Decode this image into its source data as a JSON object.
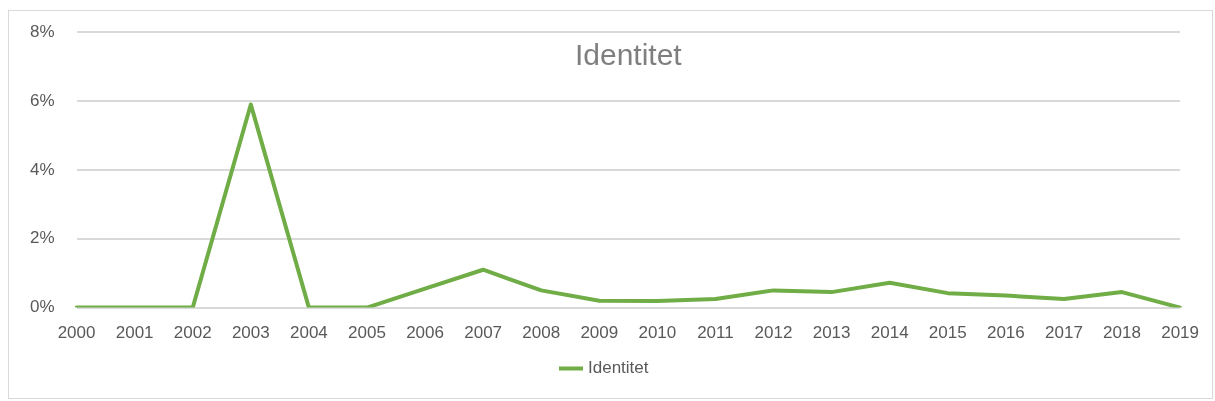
{
  "chart_data": {
    "type": "line",
    "title": "Identitet",
    "categories": [
      "2000",
      "2001",
      "2002",
      "2003",
      "2004",
      "2005",
      "2006",
      "2007",
      "2008",
      "2009",
      "2010",
      "2011",
      "2012",
      "2013",
      "2014",
      "2015",
      "2016",
      "2017",
      "2018",
      "2019"
    ],
    "series": [
      {
        "name": "Identitet",
        "color": "#70ad47",
        "values": [
          0,
          0,
          0,
          5.9,
          0,
          0,
          0.55,
          1.1,
          0.5,
          0.2,
          0.19,
          0.25,
          0.5,
          0.45,
          0.72,
          0.42,
          0.35,
          0.25,
          0.45,
          0
        ]
      }
    ],
    "ylim": [
      0,
      8
    ],
    "yticks": [
      {
        "value": 0,
        "label": "0%"
      },
      {
        "value": 2,
        "label": "2%"
      },
      {
        "value": 4,
        "label": "4%"
      },
      {
        "value": 6,
        "label": "6%"
      },
      {
        "value": 8,
        "label": "8%"
      }
    ],
    "grid": "y",
    "legend": "bottom",
    "marker": "none",
    "line_style": "solid"
  }
}
